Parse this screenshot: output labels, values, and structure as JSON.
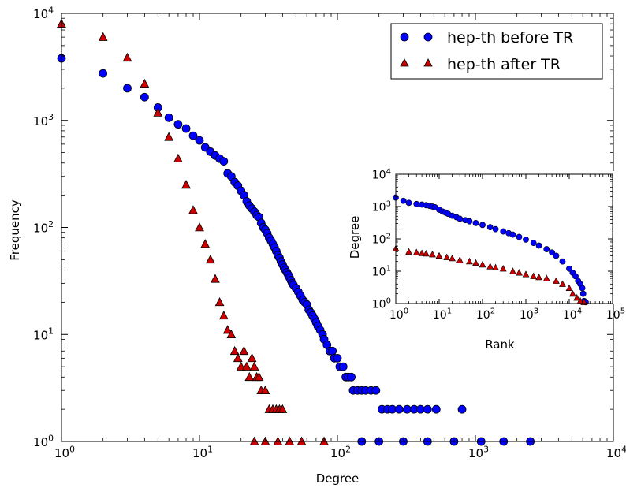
{
  "chart_data": [
    {
      "type": "scatter",
      "xscale": "log",
      "yscale": "log",
      "xlim": [
        1,
        10000
      ],
      "ylim": [
        1,
        10000
      ],
      "xlabel": "Degree",
      "ylabel": "Frequency",
      "x_ticks": [
        "10^0",
        "10^1",
        "10^2",
        "10^3",
        "10^4"
      ],
      "y_ticks": [
        "10^0",
        "10^1",
        "10^2",
        "10^3",
        "10^4"
      ],
      "legend_position": "top-right",
      "grid": false,
      "series": [
        {
          "name": "hep-th before TR",
          "marker": "circle",
          "color": "#0000ff",
          "points": [
            [
              1,
              3800
            ],
            [
              2,
              2750
            ],
            [
              3,
              2000
            ],
            [
              4,
              1650
            ],
            [
              5,
              1320
            ],
            [
              6,
              1060
            ],
            [
              7,
              920
            ],
            [
              8,
              840
            ],
            [
              9,
              720
            ],
            [
              10,
              650
            ],
            [
              11,
              560
            ],
            [
              12,
              510
            ],
            [
              13,
              470
            ],
            [
              14,
              440
            ],
            [
              15,
              415
            ],
            [
              16,
              320
            ],
            [
              17,
              300
            ],
            [
              18,
              265
            ],
            [
              19,
              245
            ],
            [
              20,
              220
            ],
            [
              21,
              200
            ],
            [
              22,
              175
            ],
            [
              23,
              160
            ],
            [
              24,
              150
            ],
            [
              25,
              140
            ],
            [
              26,
              130
            ],
            [
              27,
              125
            ],
            [
              28,
              110
            ],
            [
              29,
              100
            ],
            [
              30,
              95
            ],
            [
              31,
              88
            ],
            [
              32,
              80
            ],
            [
              33,
              75
            ],
            [
              34,
              70
            ],
            [
              35,
              65
            ],
            [
              36,
              60
            ],
            [
              37,
              55
            ],
            [
              38,
              52
            ],
            [
              39,
              48
            ],
            [
              40,
              45
            ],
            [
              41,
              42
            ],
            [
              42,
              40
            ],
            [
              43,
              38
            ],
            [
              44,
              36
            ],
            [
              45,
              34
            ],
            [
              46,
              32
            ],
            [
              47,
              30
            ],
            [
              48,
              29
            ],
            [
              50,
              27
            ],
            [
              52,
              25
            ],
            [
              54,
              23
            ],
            [
              56,
              21
            ],
            [
              58,
              20
            ],
            [
              60,
              19
            ],
            [
              62,
              17
            ],
            [
              64,
              16
            ],
            [
              66,
              15
            ],
            [
              68,
              14
            ],
            [
              70,
              13
            ],
            [
              72,
              12
            ],
            [
              75,
              11
            ],
            [
              78,
              10
            ],
            [
              80,
              9
            ],
            [
              84,
              8
            ],
            [
              88,
              7
            ],
            [
              92,
              7
            ],
            [
              95,
              6
            ],
            [
              100,
              6
            ],
            [
              104,
              5
            ],
            [
              110,
              5
            ],
            [
              115,
              4
            ],
            [
              120,
              4
            ],
            [
              126,
              4
            ],
            [
              130,
              3
            ],
            [
              140,
              3
            ],
            [
              150,
              3
            ],
            [
              160,
              3
            ],
            [
              175,
              3
            ],
            [
              190,
              3
            ],
            [
              210,
              2
            ],
            [
              230,
              2
            ],
            [
              250,
              2
            ],
            [
              280,
              2
            ],
            [
              320,
              2
            ],
            [
              360,
              2
            ],
            [
              400,
              2
            ],
            [
              450,
              2
            ],
            [
              520,
              2
            ],
            [
              800,
              2
            ],
            [
              150,
              1
            ],
            [
              200,
              1
            ],
            [
              300,
              1
            ],
            [
              450,
              1
            ],
            [
              700,
              1
            ],
            [
              1100,
              1
            ],
            [
              1600,
              1
            ],
            [
              2500,
              1
            ]
          ]
        },
        {
          "name": "hep-th after TR",
          "marker": "triangle",
          "color": "#cc0000",
          "points": [
            [
              1,
              8000
            ],
            [
              2,
              6000
            ],
            [
              3,
              3850
            ],
            [
              4,
              2200
            ],
            [
              5,
              1180
            ],
            [
              6,
              700
            ],
            [
              7,
              440
            ],
            [
              8,
              250
            ],
            [
              9,
              145
            ],
            [
              10,
              100
            ],
            [
              11,
              70
            ],
            [
              12,
              50
            ],
            [
              13,
              33
            ],
            [
              14,
              20
            ],
            [
              15,
              15
            ],
            [
              16,
              11
            ],
            [
              17,
              10
            ],
            [
              18,
              7
            ],
            [
              19,
              6
            ],
            [
              20,
              5
            ],
            [
              21,
              7
            ],
            [
              22,
              5
            ],
            [
              23,
              4
            ],
            [
              24,
              6
            ],
            [
              25,
              5
            ],
            [
              26,
              4
            ],
            [
              27,
              4
            ],
            [
              28,
              3
            ],
            [
              30,
              3
            ],
            [
              32,
              2
            ],
            [
              34,
              2
            ],
            [
              36,
              2
            ],
            [
              38,
              2
            ],
            [
              40,
              2
            ],
            [
              25,
              1
            ],
            [
              30,
              1
            ],
            [
              37,
              1
            ],
            [
              45,
              1
            ],
            [
              55,
              1
            ],
            [
              80,
              1
            ]
          ]
        }
      ]
    },
    {
      "type": "scatter",
      "role": "inset",
      "xscale": "log",
      "yscale": "log",
      "xlim": [
        1,
        100000
      ],
      "ylim": [
        1,
        10000
      ],
      "xlabel": "Rank",
      "ylabel": "Degree",
      "x_ticks": [
        "10^0",
        "10^1",
        "10^2",
        "10^3",
        "10^4",
        "10^5"
      ],
      "y_ticks": [
        "10^0",
        "10^1",
        "10^2",
        "10^3",
        "10^4"
      ],
      "grid": false,
      "series": [
        {
          "marker": "circle",
          "color": "#0000ff",
          "points": [
            [
              1,
              1900
            ],
            [
              1.5,
              1500
            ],
            [
              2,
              1300
            ],
            [
              3,
              1200
            ],
            [
              4,
              1150
            ],
            [
              5,
              1100
            ],
            [
              6,
              1050
            ],
            [
              7,
              1000
            ],
            [
              8,
              950
            ],
            [
              10,
              800
            ],
            [
              12,
              700
            ],
            [
              14,
              650
            ],
            [
              16,
              600
            ],
            [
              20,
              520
            ],
            [
              25,
              470
            ],
            [
              30,
              420
            ],
            [
              40,
              380
            ],
            [
              50,
              350
            ],
            [
              70,
              310
            ],
            [
              100,
              270
            ],
            [
              150,
              230
            ],
            [
              200,
              200
            ],
            [
              300,
              170
            ],
            [
              400,
              150
            ],
            [
              500,
              135
            ],
            [
              700,
              115
            ],
            [
              1000,
              95
            ],
            [
              1500,
              75
            ],
            [
              2000,
              62
            ],
            [
              3000,
              48
            ],
            [
              4000,
              38
            ],
            [
              5000,
              30
            ],
            [
              7000,
              20
            ],
            [
              10000,
              12
            ],
            [
              12000,
              9
            ],
            [
              14000,
              7
            ],
            [
              16000,
              5
            ],
            [
              18000,
              4
            ],
            [
              20000,
              3
            ],
            [
              21000,
              2
            ],
            [
              22000,
              1.2
            ],
            [
              24000,
              1.1
            ]
          ]
        },
        {
          "marker": "triangle",
          "color": "#cc0000",
          "points": [
            [
              1,
              50
            ],
            [
              2,
              40
            ],
            [
              3,
              38
            ],
            [
              4,
              36
            ],
            [
              5,
              35
            ],
            [
              7,
              33
            ],
            [
              10,
              30
            ],
            [
              15,
              27
            ],
            [
              20,
              25
            ],
            [
              30,
              22
            ],
            [
              50,
              20
            ],
            [
              70,
              18
            ],
            [
              100,
              16
            ],
            [
              150,
              14
            ],
            [
              200,
              13
            ],
            [
              300,
              12
            ],
            [
              500,
              10
            ],
            [
              700,
              9
            ],
            [
              1000,
              8
            ],
            [
              1500,
              7
            ],
            [
              2000,
              6.5
            ],
            [
              3000,
              6
            ],
            [
              5000,
              5
            ],
            [
              7000,
              4
            ],
            [
              10000,
              3
            ],
            [
              12000,
              2
            ],
            [
              15000,
              1.5
            ],
            [
              18000,
              1.2
            ],
            [
              22000,
              1.1
            ]
          ]
        }
      ]
    }
  ]
}
